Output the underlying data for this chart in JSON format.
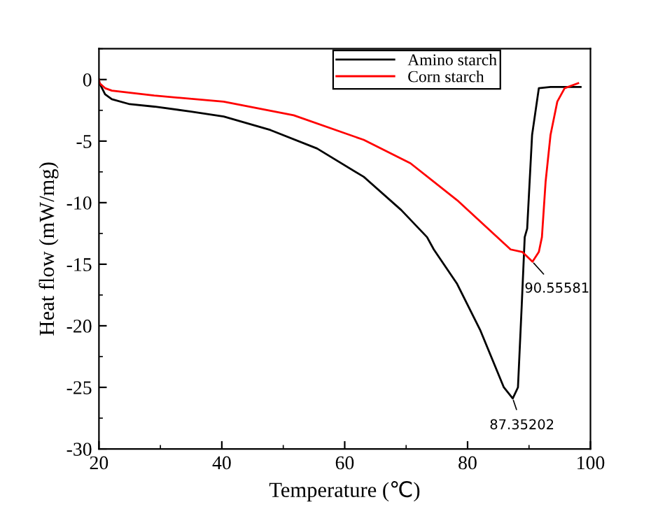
{
  "chart_data": {
    "type": "line",
    "xlabel": "Temperature (℃)",
    "ylabel": "Heat flow (mW/mg)",
    "xlim": [
      20,
      100
    ],
    "ylim": [
      -30,
      2.5
    ],
    "xticks": [
      20,
      40,
      60,
      80,
      100
    ],
    "yticks": [
      -30,
      -25,
      -20,
      -15,
      -10,
      -5,
      0
    ],
    "grid": false,
    "legend": "top right",
    "marker": "none",
    "line_style": "solid",
    "series": [
      {
        "name": "Amino starch",
        "color": "#000000",
        "x": [
          20,
          20.1,
          21,
          22.1,
          25,
          29,
          35,
          40.3,
          47.9,
          55.5,
          63.1,
          69.2,
          73.4,
          74.5,
          78.3,
          82.1,
          85.9,
          87.35,
          88.2,
          88.8,
          89.3,
          89.7,
          90.5,
          91.6,
          93.5,
          98.4
        ],
        "values": [
          0,
          -0.3,
          -1.2,
          -1.6,
          -2.0,
          -2.2,
          -2.6,
          -3.0,
          -4.1,
          -5.6,
          -7.9,
          -10.6,
          -12.8,
          -13.8,
          -16.6,
          -20.4,
          -25.0,
          -25.9,
          -25,
          -18.5,
          -12.8,
          -12.1,
          -4.5,
          -0.7,
          -0.6,
          -0.6
        ]
      },
      {
        "name": "Corn starch",
        "color": "#ff0000",
        "x": [
          20,
          20.1,
          21,
          22.1,
          29,
          40.3,
          51.7,
          63.1,
          70.7,
          78.3,
          87,
          88.9,
          90.56,
          91.6,
          92.1,
          92.7,
          93.5,
          94.6,
          95.8,
          98
        ],
        "values": [
          0,
          -0.3,
          -0.7,
          -0.9,
          -1.3,
          -1.8,
          -2.9,
          -4.9,
          -6.8,
          -9.8,
          -13.8,
          -14.0,
          -14.8,
          -14.0,
          -12.8,
          -8.3,
          -4.5,
          -1.8,
          -0.7,
          -0.3
        ]
      }
    ],
    "annotations": [
      {
        "text": "87.35202",
        "x": 87.35,
        "y": -25.9
      },
      {
        "text": "90.55581",
        "x": 90.56,
        "y": -14.8
      }
    ]
  }
}
